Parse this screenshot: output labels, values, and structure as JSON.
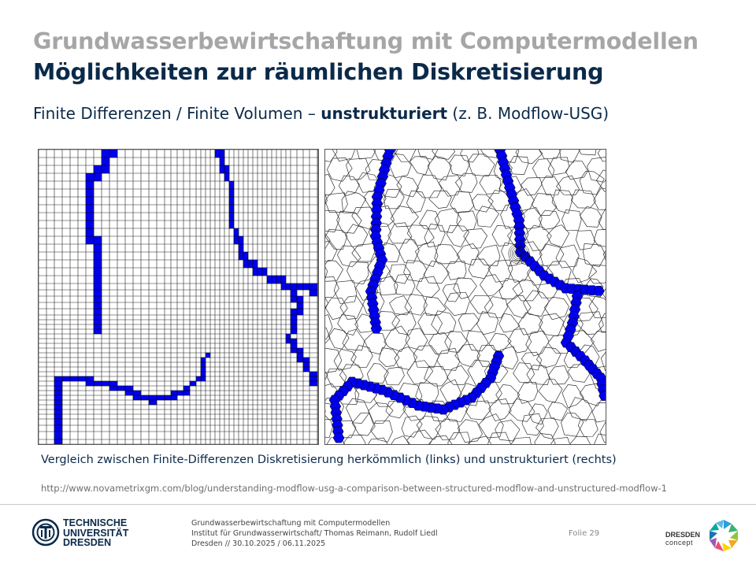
{
  "header": {
    "title_main": "Grundwasserbewirtschaftung mit Computermodellen",
    "title_sub": "Möglichkeiten zur räumlichen Diskretisierung"
  },
  "subtitle": {
    "before": "Finite Differenzen / Finite Volumen – ",
    "bold": "unstrukturiert",
    "after": " (z. B. Modflow-USG)"
  },
  "figure": {
    "caption": "Vergleich zwischen Finite-Differenzen Diskretisierung herkömmlich (links) und unstrukturiert (rechts)",
    "source_url": "http://www.novametrixgm.com/blog/understanding-modflow-usg-a-comparison-between-structured-modflow-and-unstructured-modflow-1",
    "river_color": "#0000ee"
  },
  "footer": {
    "logo_lines": [
      "TECHNISCHE",
      "UNIVERSITÄT",
      "DRESDEN"
    ],
    "info_lines": [
      "Grundwasserbewirtschaftung mit Computermodellen",
      "Institut für Grundwasserwirtschaft/ Thomas Reimann, Rudolf Liedl",
      "Dresden // 30.10.2025 / 06.11.2025"
    ],
    "slide_label": "Folie 29",
    "partner_lines": [
      "DRESDEN",
      "concept"
    ]
  }
}
